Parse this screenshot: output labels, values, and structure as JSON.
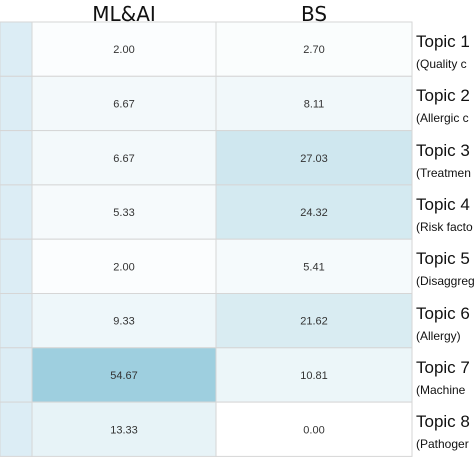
{
  "chart_data": {
    "type": "heatmap",
    "columns": [
      "ML&AI",
      "BS"
    ],
    "rows": [
      {
        "name": "Topic 1",
        "desc": "(Quality c",
        "values": [
          "2.00",
          "2.70"
        ]
      },
      {
        "name": "Topic 2",
        "desc": "(Allergic c",
        "values": [
          "6.67",
          "8.11"
        ]
      },
      {
        "name": "Topic 3",
        "desc": "(Treatmen",
        "values": [
          "6.67",
          "27.03"
        ]
      },
      {
        "name": "Topic 4",
        "desc": "(Risk facto",
        "values": [
          "5.33",
          "24.32"
        ]
      },
      {
        "name": "Topic 5",
        "desc": "(Disaggreg",
        "values": [
          "2.00",
          "5.41"
        ]
      },
      {
        "name": "Topic 6",
        "desc": "(Allergy)",
        "values": [
          "9.33",
          "21.62"
        ]
      },
      {
        "name": "Topic 7",
        "desc": "(Machine",
        "values": [
          "54.67",
          "10.81"
        ]
      },
      {
        "name": "Topic 8",
        "desc": "(Pathoger",
        "values": [
          "13.33",
          "0.00"
        ]
      }
    ],
    "color_scale": {
      "low": "#ffffff",
      "high": "#9ecfdf",
      "max_value": 54.67
    },
    "partial_column_color": "#dcedf5"
  }
}
